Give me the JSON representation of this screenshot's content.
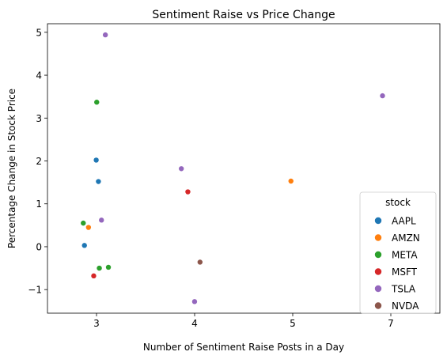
{
  "chart_data": {
    "type": "scatter",
    "title": "Sentiment Raise vs Price Change",
    "xlabel": "Number of Sentiment Raise Posts in a Day",
    "ylabel": "Percentage Change in Stock Price",
    "x_categories": [
      "3",
      "4",
      "5",
      "7"
    ],
    "xlim": [
      -0.5,
      3.5
    ],
    "ylim": [
      -1.55,
      5.2
    ],
    "yticks": [
      -1,
      0,
      1,
      2,
      3,
      4,
      5
    ],
    "ytick_labels": [
      "−1",
      "0",
      "1",
      "2",
      "3",
      "4",
      "5"
    ],
    "grid": false,
    "legend": {
      "title": "stock",
      "placement": "lower-right"
    },
    "series": [
      {
        "name": "AAPL",
        "color": "#1f77b4",
        "points": [
          {
            "x": "3",
            "y": 2.02
          },
          {
            "x": "3",
            "y": 1.52
          },
          {
            "x": "3",
            "y": 0.03
          }
        ]
      },
      {
        "name": "AMZN",
        "color": "#ff7f0e",
        "points": [
          {
            "x": "3",
            "y": 0.45
          },
          {
            "x": "5",
            "y": 1.53
          }
        ]
      },
      {
        "name": "META",
        "color": "#2ca02c",
        "points": [
          {
            "x": "3",
            "y": 3.37
          },
          {
            "x": "3",
            "y": 0.55
          },
          {
            "x": "3",
            "y": -0.48
          },
          {
            "x": "3",
            "y": -0.5
          }
        ]
      },
      {
        "name": "MSFT",
        "color": "#d62728",
        "points": [
          {
            "x": "3",
            "y": -0.68
          },
          {
            "x": "4",
            "y": 1.28
          }
        ]
      },
      {
        "name": "TSLA",
        "color": "#9467bd",
        "points": [
          {
            "x": "3",
            "y": 4.94
          },
          {
            "x": "3",
            "y": 0.62
          },
          {
            "x": "4",
            "y": 1.82
          },
          {
            "x": "4",
            "y": -1.28
          },
          {
            "x": "7",
            "y": 3.52
          }
        ]
      },
      {
        "name": "NVDA",
        "color": "#8c564b",
        "points": [
          {
            "x": "4",
            "y": -0.36
          }
        ]
      }
    ]
  }
}
